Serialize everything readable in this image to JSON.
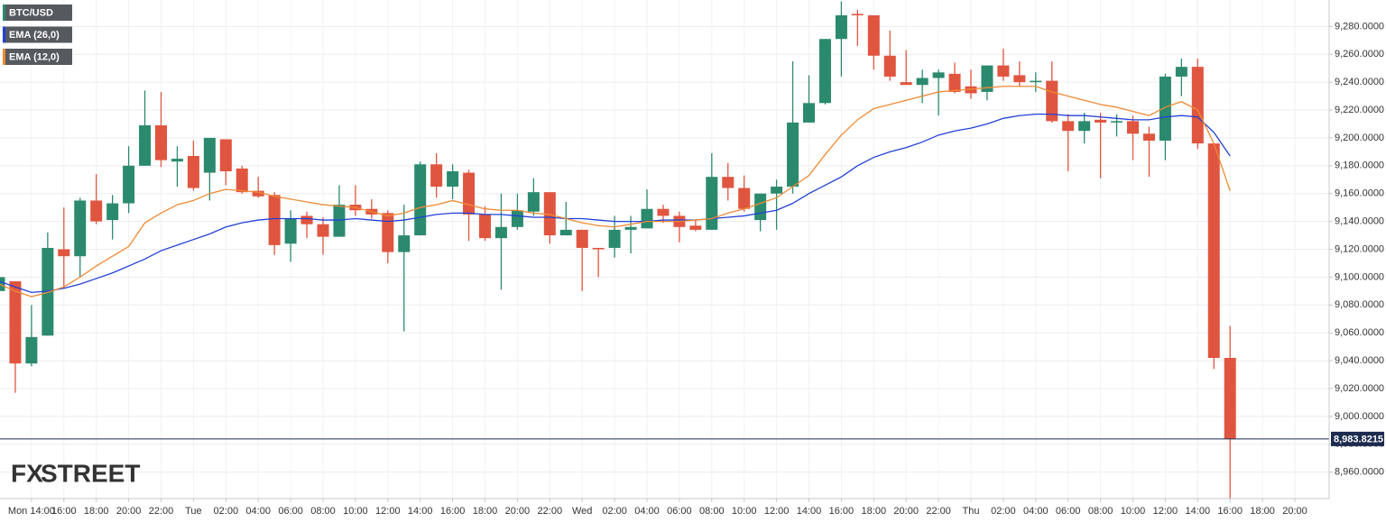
{
  "chart_data": {
    "type": "candlestick",
    "categories": [
      null,
      null,
      "Mon 14:00",
      null,
      "16:00",
      null,
      "18:00",
      null,
      "20:00",
      null,
      "22:00",
      null,
      "Tue",
      null,
      "02:00",
      null,
      "04:00",
      null,
      "06:00",
      null,
      "08:00",
      null,
      "10:00",
      null,
      "12:00",
      null,
      "14:00",
      null,
      "16:00",
      null,
      "18:00",
      null,
      "20:00",
      null,
      "22:00",
      null,
      "Wed",
      null,
      "02:00",
      null,
      "04:00",
      null,
      "06:00",
      null,
      "08:00",
      null,
      "10:00",
      null,
      "12:00",
      null,
      "14:00",
      null,
      "16:00",
      null,
      "18:00",
      null,
      "20:00",
      null,
      "22:00",
      null,
      "Thu",
      null,
      "02:00",
      null,
      "04:00",
      null,
      "06:00",
      null,
      "08:00",
      null,
      "10:00",
      null,
      "12:00",
      null,
      "14:00",
      null,
      "16:00",
      null,
      "18:00",
      null,
      "20:00",
      null
    ],
    "series": [
      {
        "name": "BTC/USD",
        "type": "candlestick",
        "up_color": "#2b8a6e",
        "down_color": "#e0553f",
        "open": [
          9090,
          9097,
          9038,
          9058,
          9120,
          9115,
          9155,
          9141,
          9153,
          9180,
          9209,
          9183,
          9187,
          9175,
          9199,
          9178,
          9162,
          9159,
          9124,
          9144,
          9138,
          9129,
          9152,
          9149,
          9146,
          9118,
          9130,
          9181,
          9165,
          9175,
          9145,
          9128,
          9136,
          9147,
          9161,
          9130,
          9134,
          9121,
          9121,
          9134,
          9135,
          9149,
          9144,
          9137,
          9134,
          9172,
          9164,
          9141,
          9160,
          9165,
          9211,
          9225,
          9271,
          9289,
          9288,
          9259,
          9240,
          9238,
          9243,
          9246,
          9237,
          9233,
          9252,
          9245,
          9240,
          9241,
          9212,
          9205,
          9213,
          9211,
          9212,
          9203,
          9198,
          9244,
          9251,
          9196,
          9042,
          null,
          null,
          null,
          null,
          null
        ],
        "high": [
          9112,
          9097,
          9080,
          9132,
          9150,
          9157,
          9174,
          9159,
          9194,
          9234,
          9233,
          9194,
          9198,
          9200,
          9199,
          9180,
          9172,
          9161,
          9148,
          9147,
          9143,
          9166,
          9166,
          9156,
          9148,
          9152,
          9183,
          9189,
          9181,
          9177,
          9151,
          9160,
          9160,
          9171,
          9161,
          9154,
          9134,
          9121,
          9144,
          9144,
          9163,
          9152,
          9147,
          9141,
          9189,
          9182,
          9173,
          9160,
          9170,
          9255,
          9245,
          9271,
          9298,
          9292,
          9288,
          9277,
          9263,
          9249,
          9249,
          9254,
          9249,
          9252,
          9264,
          9255,
          9247,
          9255,
          9217,
          9218,
          9218,
          9217,
          9216,
          9208,
          9246,
          9257,
          9257,
          9196,
          9065,
          null,
          null,
          null,
          null,
          null
        ],
        "low": [
          9085,
          9017,
          9036,
          9058,
          9092,
          9100,
          9138,
          9127,
          9146,
          9180,
          9179,
          9165,
          9162,
          9155,
          9166,
          9160,
          9157,
          9116,
          9111,
          9128,
          9116,
          9129,
          9144,
          9142,
          9110,
          9061,
          9130,
          9157,
          9156,
          9126,
          9126,
          9091,
          9134,
          9144,
          9124,
          9130,
          9090,
          9100,
          9114,
          9117,
          9135,
          9139,
          9125,
          9133,
          9134,
          9155,
          9147,
          9133,
          9134,
          9160,
          9211,
          9224,
          9244,
          9266,
          9249,
          9241,
          9238,
          9225,
          9216,
          9232,
          9228,
          9227,
          9241,
          9237,
          9233,
          9211,
          9176,
          9196,
          9171,
          9201,
          9184,
          9172,
          9184,
          9230,
          9192,
          9034,
          8941,
          null,
          null,
          null,
          null,
          null
        ],
        "close": [
          9100,
          9038,
          9057,
          9121,
          9115,
          9155,
          9140,
          9153,
          9180,
          9209,
          9184,
          9185,
          9164,
          9200,
          9176,
          9161,
          9158,
          9123,
          9142,
          9138,
          9129,
          9152,
          9148,
          9145,
          9118,
          9130,
          9181,
          9165,
          9176,
          9145,
          9128,
          9136,
          9148,
          9161,
          9130,
          9134,
          9121,
          9120,
          9134,
          9136,
          9149,
          9144,
          9136,
          9134,
          9172,
          9164,
          9149,
          9160,
          9165,
          9211,
          9225,
          9271,
          9288,
          9288,
          9259,
          9244,
          9238,
          9243,
          9247,
          9233,
          9232,
          9252,
          9244,
          9240,
          9241,
          9212,
          9205,
          9212,
          9211,
          9212,
          9203,
          9198,
          9244,
          9251,
          9196,
          9042,
          8983.8215,
          null,
          null,
          null,
          null,
          null
        ]
      },
      {
        "name": "EMA (26,0)",
        "type": "line",
        "color": "#2140d8",
        "values": [
          9097,
          9093,
          9089,
          9090,
          9092,
          9095,
          9099,
          9103,
          9108,
          9113,
          9119,
          9123,
          9127,
          9131,
          9136,
          9139,
          9141,
          9142,
          9142,
          9142,
          9141,
          9141,
          9142,
          9141,
          9140,
          9141,
          9143,
          9145,
          9146,
          9146,
          9145,
          9145,
          9144,
          9143,
          9143,
          9142,
          9142,
          9141,
          9140,
          9140,
          9140,
          9141,
          9141,
          9141,
          9142,
          9143,
          9144,
          9146,
          9148,
          9153,
          9160,
          9166,
          9172,
          9180,
          9186,
          9190,
          9193,
          9197,
          9202,
          9205,
          9207,
          9210,
          9214,
          9216,
          9217,
          9217,
          9216,
          9216,
          9215,
          9214,
          9213,
          9213,
          9215,
          9216,
          9215,
          9204,
          9187,
          null,
          null,
          null,
          null,
          null
        ]
      },
      {
        "name": "EMA (12,0)",
        "type": "line",
        "color": "#ef8a34",
        "values": [
          9095,
          9090,
          9086,
          9089,
          9093,
          9100,
          9108,
          9115,
          9122,
          9139,
          9146,
          9152,
          9155,
          9160,
          9163,
          9162,
          9161,
          9158,
          9156,
          9154,
          9152,
          9151,
          9150,
          9147,
          9144,
          9146,
          9150,
          9152,
          9155,
          9152,
          9149,
          9148,
          9148,
          9146,
          9145,
          9142,
          9139,
          9137,
          9136,
          9138,
          9140,
          9140,
          9140,
          9141,
          9142,
          9146,
          9149,
          9153,
          9157,
          9165,
          9173,
          9188,
          9202,
          9213,
          9221,
          9224,
          9227,
          9230,
          9233,
          9234,
          9235,
          9236,
          9237,
          9237,
          9237,
          9233,
          9230,
          9227,
          9224,
          9222,
          9219,
          9216,
          9222,
          9226,
          9220,
          9196,
          9162,
          null,
          null,
          null,
          null,
          null
        ]
      }
    ],
    "ylim": [
      8941,
      9299
    ],
    "yticks": [
      {
        "value": 8960,
        "label": "8,960.0000"
      },
      {
        "value": 8980,
        "label": "8,980.0000"
      },
      {
        "value": 9000,
        "label": "9,000.0000"
      },
      {
        "value": 9020,
        "label": "9,020.0000"
      },
      {
        "value": 9040,
        "label": "9,040.0000"
      },
      {
        "value": 9060,
        "label": "9,060.0000"
      },
      {
        "value": 9080,
        "label": "9,080.0000"
      },
      {
        "value": 9100,
        "label": "9,100.0000"
      },
      {
        "value": 9120,
        "label": "9,120.0000"
      },
      {
        "value": 9140,
        "label": "9,140.0000"
      },
      {
        "value": 9160,
        "label": "9,160.0000"
      },
      {
        "value": 9180,
        "label": "9,180.0000"
      },
      {
        "value": 9200,
        "label": "9,200.0000"
      },
      {
        "value": 9220,
        "label": "9,220.0000"
      },
      {
        "value": 9240,
        "label": "9,240.0000"
      },
      {
        "value": 9260,
        "label": "9,260.0000"
      },
      {
        "value": 9280,
        "label": "9,280.0000"
      }
    ],
    "grid": true,
    "last_price": {
      "value": 8983.8215,
      "label": "8,983.8215",
      "color": "#1c2b4f"
    },
    "legend": "top-left",
    "watermark": {
      "fx": "FX",
      "street": "STREET"
    }
  }
}
